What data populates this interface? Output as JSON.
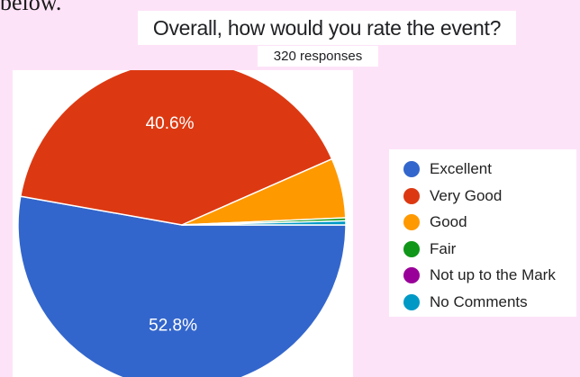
{
  "page": {
    "top_fragment": "below."
  },
  "chart_data": {
    "type": "pie",
    "title": "Overall, how would you rate the event?",
    "subtitle": "320 responses",
    "legend_position": "right",
    "slices": [
      {
        "label": "Excellent",
        "value": 52.8,
        "data_label": "52.8%",
        "color": "#3366cc"
      },
      {
        "label": "Very Good",
        "value": 40.6,
        "data_label": "40.6%",
        "color": "#dc3912"
      },
      {
        "label": "Good",
        "value": 5.9,
        "data_label": "",
        "color": "#ff9900"
      },
      {
        "label": "Fair",
        "value": 0.3,
        "data_label": "",
        "color": "#109618"
      },
      {
        "label": "Not up to the Mark",
        "value": 0.0,
        "data_label": "",
        "color": "#990099"
      },
      {
        "label": "No Comments",
        "value": 0.4,
        "data_label": "",
        "color": "#0099c6"
      }
    ]
  }
}
